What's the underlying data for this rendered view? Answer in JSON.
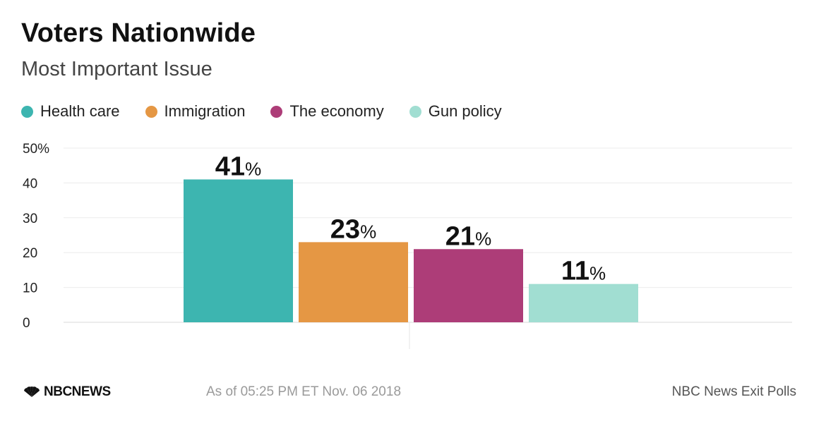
{
  "header": {
    "title": "Voters Nationwide",
    "subtitle": "Most Important Issue"
  },
  "legend": [
    {
      "label": "Health care",
      "color": "#3db5b0"
    },
    {
      "label": "Immigration",
      "color": "#e59744"
    },
    {
      "label": "The economy",
      "color": "#ad3d78"
    },
    {
      "label": "Gun policy",
      "color": "#a1ded2"
    }
  ],
  "footer": {
    "logo_text": "NBCNEWS",
    "timestamp": "As of 05:25 PM ET Nov. 06 2018",
    "source": "NBC News Exit Polls"
  },
  "chart_data": {
    "type": "bar",
    "title": "Voters Nationwide",
    "subtitle": "Most Important Issue",
    "categories": [
      "Health care",
      "Immigration",
      "The economy",
      "Gun policy"
    ],
    "values": [
      41,
      23,
      21,
      11
    ],
    "data_labels": [
      "41",
      "23",
      "21",
      "11"
    ],
    "data_label_suffix": "%",
    "colors": [
      "#3db5b0",
      "#e59744",
      "#ad3d78",
      "#a1ded2"
    ],
    "ylim": [
      0,
      50
    ],
    "yticks": [
      0,
      10,
      20,
      30,
      40,
      50
    ],
    "ytick_labels": [
      "0",
      "10",
      "20",
      "30",
      "40",
      "50%"
    ],
    "grid": true,
    "legend_position": "top-left",
    "xlabel": "",
    "ylabel": ""
  }
}
